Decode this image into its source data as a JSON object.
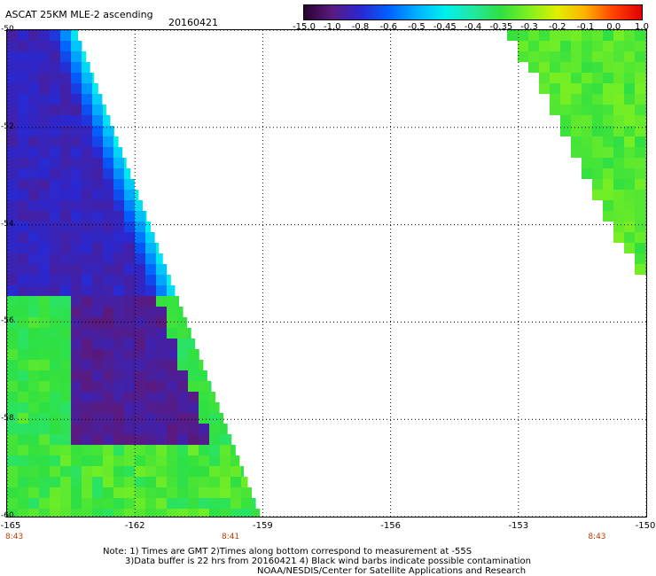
{
  "header": {
    "title": "ASCAT 25KM MLE-2 ascending",
    "date": "20160421"
  },
  "colorbar": {
    "labels": [
      "-15.0",
      "-1.0",
      "-0.8",
      "-0.6",
      "-0.5",
      "-0.45",
      "-0.4",
      "-0.35",
      "-0.3",
      "-0.2",
      "-0.1",
      "0.0",
      "1.0"
    ],
    "colors": [
      "#2a0030",
      "#5a1a80",
      "#2a28d0",
      "#0060ff",
      "#00b0ff",
      "#00f0f0",
      "#20e8a0",
      "#30e040",
      "#80f020",
      "#e0f000",
      "#ffb000",
      "#ff4000",
      "#e00000"
    ]
  },
  "chart_data": {
    "type": "heatmap",
    "title": "ASCAT 25KM MLE-2 ascending",
    "subtitle": "20160421",
    "xlim": [
      -165,
      -150
    ],
    "ylim": [
      -60,
      -50
    ],
    "x_ticks": [
      -165,
      -162,
      -159,
      -156,
      -153,
      -150
    ],
    "x_tick_labels": [
      "-165",
      "-162",
      "-159",
      "-156",
      "-153",
      "-150"
    ],
    "y_ticks": [
      -50,
      -52,
      -54,
      -56,
      -58,
      -60
    ],
    "y_tick_labels": [
      "-50",
      "-52",
      "-54",
      "-56",
      "-58",
      "-60"
    ],
    "time_labels": [
      {
        "x": -165,
        "label": "8:43"
      },
      {
        "x": -159.8,
        "label": "8:41"
      },
      {
        "x": -151.2,
        "label": "8:43"
      }
    ],
    "grid": true,
    "value_scale": [
      "-15.0",
      "-1.0",
      "-0.8",
      "-0.6",
      "-0.5",
      "-0.45",
      "-0.4",
      "-0.35",
      "-0.3",
      "-0.2",
      "-0.1",
      "0.0",
      "1.0"
    ]
  },
  "notes": {
    "line1": "Note: 1) Times are GMT 2)Times along bottom correspond to measurement at -55S",
    "line2": "3)Data buffer is 22 hrs from 20160421 4) Black wind barbs indicate possible contamination",
    "line3": "NOAA/NESDIS/Center for Satellite Applications and Research"
  }
}
